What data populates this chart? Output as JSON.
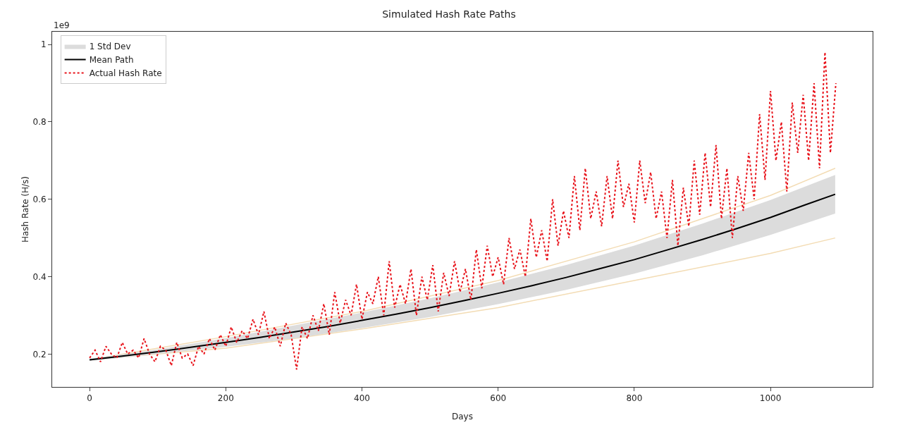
{
  "chart_data": {
    "type": "line",
    "title": "Simulated Hash Rate Paths",
    "xlabel": "Days",
    "ylabel": "Hash Rate (H/s)",
    "annotations": [
      "1e9"
    ],
    "xlim": [
      -55,
      1150
    ],
    "xticks": [
      0,
      200,
      400,
      600,
      800,
      1000
    ],
    "ylim": [
      0.115,
      1.033
    ],
    "yticks": [
      0.2,
      0.4,
      0.6,
      0.8,
      1.0
    ],
    "grid": false,
    "legend": "top left",
    "series": [
      {
        "color": "#f3dcb4",
        "x": [
          0,
          200,
          400,
          600,
          800,
          1000,
          1095
        ],
        "values": [
          0.185,
          0.215,
          0.265,
          0.32,
          0.39,
          0.46,
          0.5
        ]
      },
      {
        "color": "#f3dcb4",
        "x": [
          0,
          200,
          400,
          600,
          800,
          1000,
          1095
        ],
        "values": [
          0.185,
          0.245,
          0.31,
          0.39,
          0.49,
          0.61,
          0.68
        ]
      },
      {
        "name": "1 Std Dev",
        "type": "area",
        "color": "#dcdcdc",
        "x": [
          0,
          100,
          200,
          300,
          400,
          500,
          600,
          700,
          800,
          900,
          1000,
          1095
        ],
        "values": [
          null,
          null,
          null,
          null,
          null,
          null,
          null,
          null,
          null,
          null,
          null,
          null
        ],
        "lower": [
          0.182,
          0.2,
          0.219,
          0.24,
          0.267,
          0.296,
          0.329,
          0.366,
          0.408,
          0.455,
          0.508,
          0.563
        ],
        "upper": [
          0.188,
          0.212,
          0.241,
          0.274,
          0.307,
          0.344,
          0.385,
          0.43,
          0.48,
          0.537,
          0.598,
          0.663
        ]
      },
      {
        "name": "Mean Path",
        "color": "#000000",
        "x": [
          0,
          50,
          100,
          150,
          200,
          250,
          300,
          350,
          400,
          450,
          500,
          550,
          600,
          650,
          700,
          750,
          800,
          850,
          900,
          950,
          1000,
          1050,
          1095
        ],
        "values": [
          0.185,
          0.195,
          0.206,
          0.218,
          0.23,
          0.243,
          0.257,
          0.271,
          0.287,
          0.303,
          0.32,
          0.338,
          0.357,
          0.377,
          0.398,
          0.421,
          0.444,
          0.47,
          0.496,
          0.524,
          0.553,
          0.585,
          0.613
        ]
      },
      {
        "name": "Actual Hash Rate",
        "color": "#e8141c",
        "line_style": "dotted",
        "x": [
          0,
          8,
          16,
          24,
          32,
          40,
          48,
          56,
          64,
          72,
          80,
          88,
          96,
          104,
          112,
          120,
          128,
          136,
          144,
          152,
          160,
          168,
          176,
          184,
          192,
          200,
          208,
          216,
          224,
          232,
          240,
          248,
          256,
          264,
          272,
          280,
          288,
          296,
          304,
          312,
          320,
          328,
          336,
          344,
          352,
          360,
          368,
          376,
          384,
          392,
          400,
          408,
          416,
          424,
          432,
          440,
          448,
          456,
          464,
          472,
          480,
          488,
          496,
          504,
          512,
          520,
          528,
          536,
          544,
          552,
          560,
          568,
          576,
          584,
          592,
          600,
          608,
          616,
          624,
          632,
          640,
          648,
          656,
          664,
          672,
          680,
          688,
          696,
          704,
          712,
          720,
          728,
          736,
          744,
          752,
          760,
          768,
          776,
          784,
          792,
          800,
          808,
          816,
          824,
          832,
          840,
          848,
          856,
          864,
          872,
          880,
          888,
          896,
          904,
          912,
          920,
          928,
          936,
          944,
          952,
          960,
          968,
          976,
          984,
          992,
          1000,
          1008,
          1016,
          1024,
          1032,
          1040,
          1048,
          1056,
          1064,
          1072,
          1080,
          1088,
          1096
        ],
        "values": [
          0.19,
          0.21,
          0.18,
          0.22,
          0.2,
          0.19,
          0.23,
          0.2,
          0.21,
          0.19,
          0.24,
          0.2,
          0.18,
          0.22,
          0.21,
          0.17,
          0.23,
          0.19,
          0.2,
          0.17,
          0.22,
          0.2,
          0.24,
          0.21,
          0.25,
          0.22,
          0.27,
          0.23,
          0.26,
          0.24,
          0.29,
          0.25,
          0.31,
          0.24,
          0.27,
          0.22,
          0.28,
          0.25,
          0.16,
          0.27,
          0.24,
          0.3,
          0.26,
          0.33,
          0.25,
          0.36,
          0.28,
          0.34,
          0.3,
          0.38,
          0.29,
          0.36,
          0.33,
          0.4,
          0.3,
          0.44,
          0.32,
          0.38,
          0.33,
          0.42,
          0.3,
          0.4,
          0.34,
          0.43,
          0.31,
          0.41,
          0.35,
          0.44,
          0.36,
          0.42,
          0.34,
          0.47,
          0.37,
          0.48,
          0.4,
          0.45,
          0.38,
          0.5,
          0.42,
          0.47,
          0.4,
          0.55,
          0.45,
          0.52,
          0.44,
          0.6,
          0.48,
          0.57,
          0.5,
          0.66,
          0.52,
          0.68,
          0.55,
          0.62,
          0.53,
          0.66,
          0.55,
          0.7,
          0.58,
          0.64,
          0.54,
          0.7,
          0.59,
          0.67,
          0.55,
          0.62,
          0.5,
          0.65,
          0.48,
          0.63,
          0.53,
          0.7,
          0.56,
          0.72,
          0.58,
          0.74,
          0.55,
          0.68,
          0.5,
          0.66,
          0.57,
          0.72,
          0.6,
          0.82,
          0.65,
          0.88,
          0.7,
          0.8,
          0.62,
          0.85,
          0.72,
          0.87,
          0.7,
          0.9,
          0.68,
          0.98,
          0.72,
          0.9
        ]
      }
    ]
  }
}
